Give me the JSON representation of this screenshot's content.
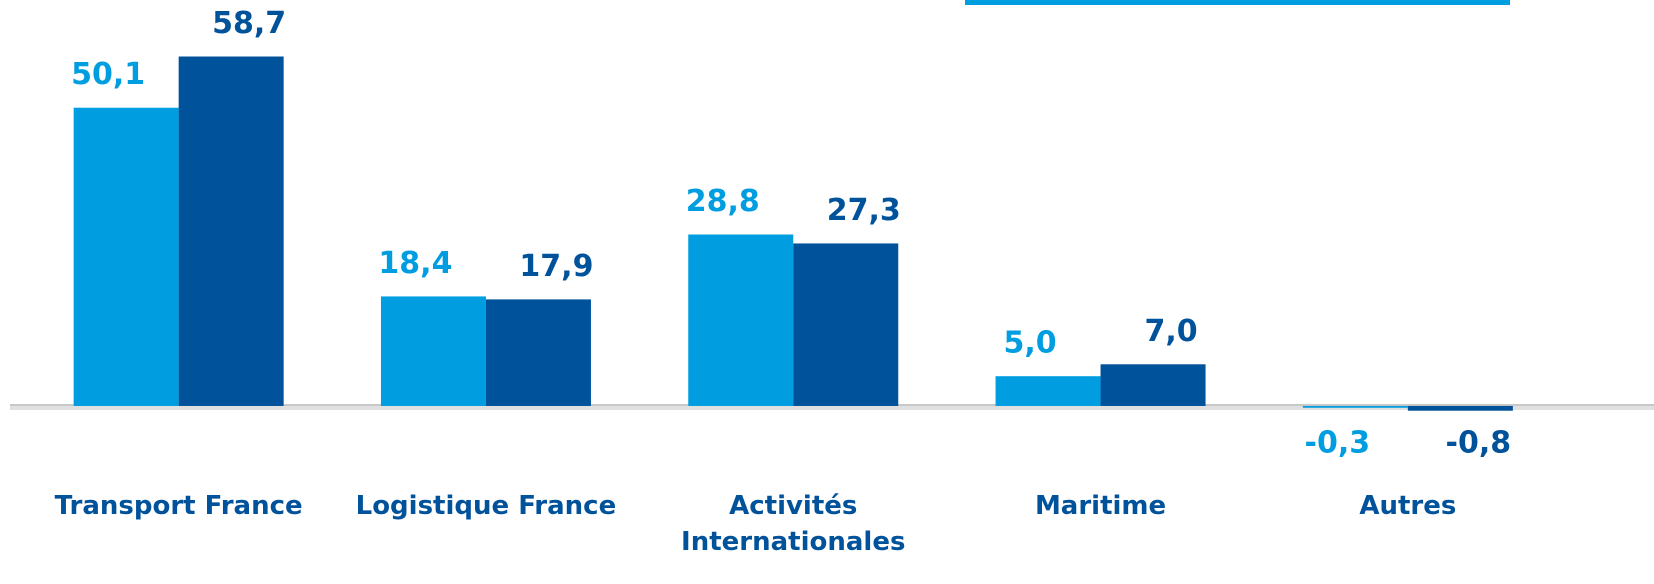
{
  "chart_data": {
    "type": "bar",
    "categories": [
      "Transport France",
      "Logistique France",
      "Activités Internationales",
      "Maritime",
      "Autres"
    ],
    "series": [
      {
        "color": "#009ee0",
        "values": [
          50.1,
          18.4,
          28.8,
          5.0,
          -0.3
        ],
        "value_labels": [
          "50,1",
          "18,4",
          "28,8",
          "5,0",
          "-0,3"
        ]
      },
      {
        "color": "#00529b",
        "values": [
          58.7,
          17.9,
          27.3,
          7.0,
          -0.8
        ],
        "value_labels": [
          "58,7",
          "17,9",
          "27,3",
          "7,0",
          "-0,8"
        ]
      }
    ],
    "ylim": [
      -10,
      65
    ]
  }
}
